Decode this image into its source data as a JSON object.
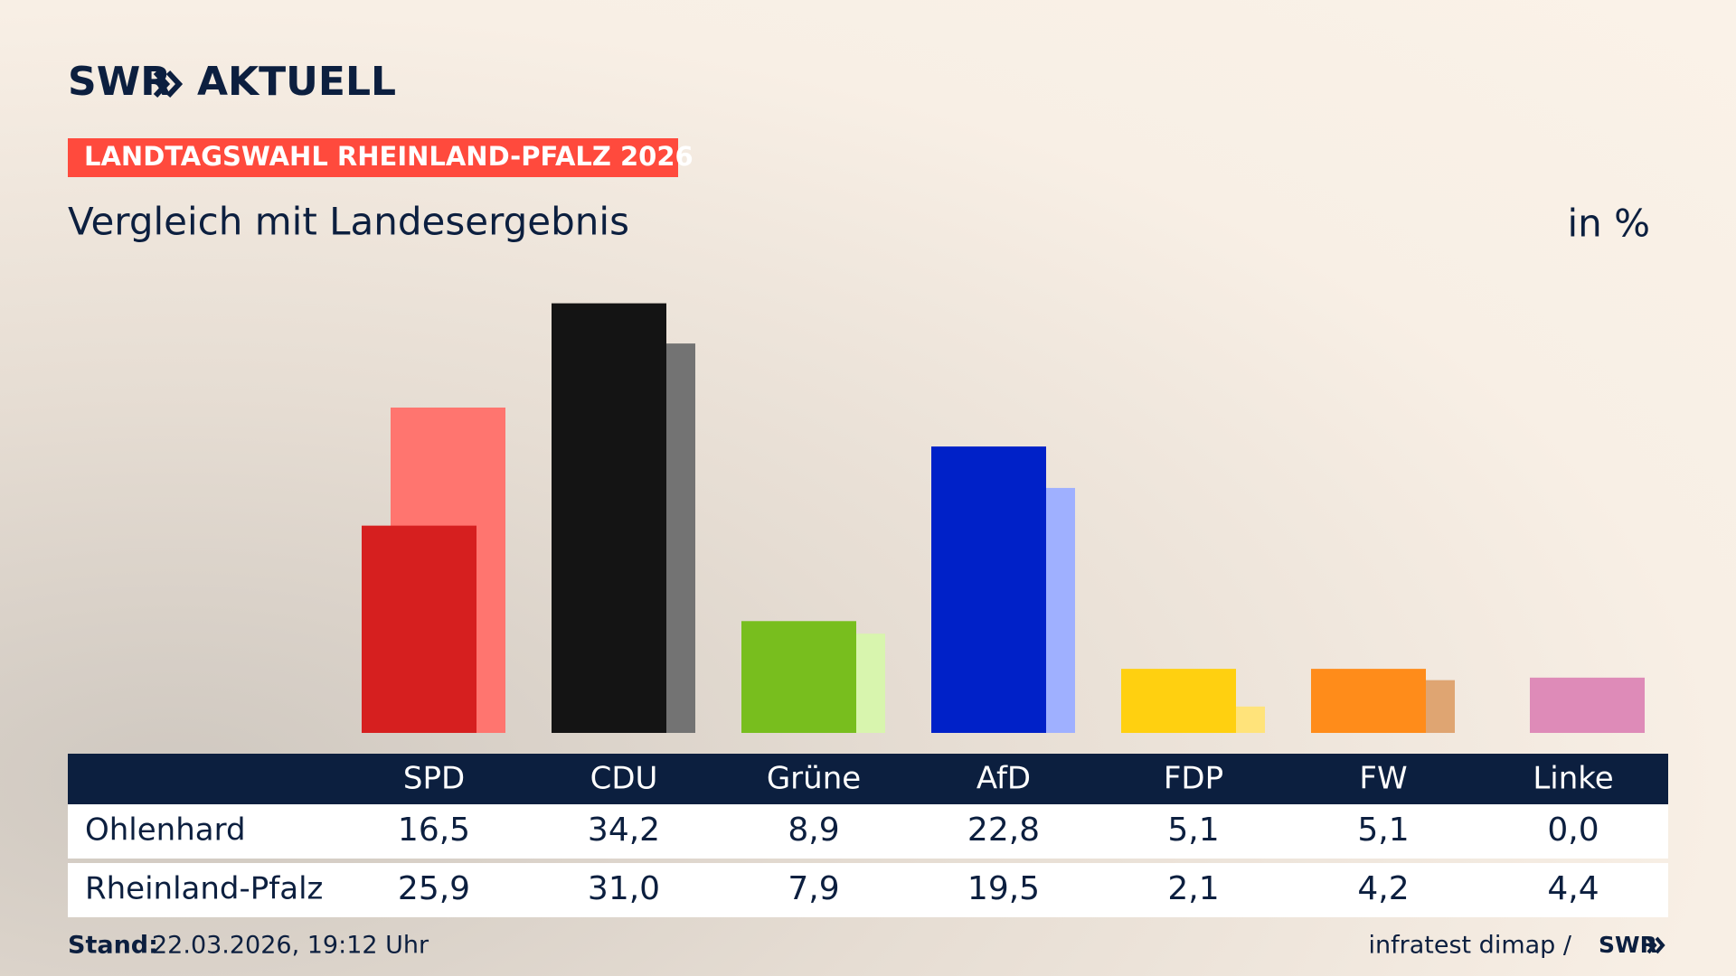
{
  "logo": {
    "brand": "SWR",
    "name": "AKTUELL"
  },
  "chart_data": {
    "type": "bar",
    "kicker": "LANDTAGSWAHL RHEINLAND-PFALZ 2026",
    "title": "Vergleich mit Landesergebnis",
    "unit": "in %",
    "categories": [
      "SPD",
      "CDU",
      "Grüne",
      "AfD",
      "FDP",
      "FW",
      "Linke"
    ],
    "series": [
      {
        "name": "Ohlenhard",
        "colors": [
          "#d61f1f",
          "#141414",
          "#78be1e",
          "#0021c8",
          "#ffd010",
          "#ff8c1a",
          "#e0218a"
        ],
        "values": [
          16.5,
          34.2,
          8.9,
          22.8,
          5.1,
          5.1,
          0.0
        ],
        "value_labels": [
          "16,5",
          "34,2",
          "8,9",
          "22,8",
          "5,1",
          "5,1",
          "0,0"
        ]
      },
      {
        "name": "Rheinland-Pfalz",
        "colors": [
          "#ff756f",
          "#737373",
          "#d8f5ae",
          "#9fb0ff",
          "#ffe37a",
          "#dfa572",
          "#de8bb8"
        ],
        "values": [
          25.9,
          31.0,
          7.9,
          19.5,
          2.1,
          4.2,
          4.4
        ],
        "value_labels": [
          "25,9",
          "31,0",
          "7,9",
          "19,5",
          "2,1",
          "4,2",
          "4,4"
        ]
      }
    ],
    "footer": {
      "label": "Stand:",
      "timestamp": "22.03.2026, 19:12 Uhr",
      "source": "infratest dimap /",
      "source_logo": "SWR"
    }
  }
}
